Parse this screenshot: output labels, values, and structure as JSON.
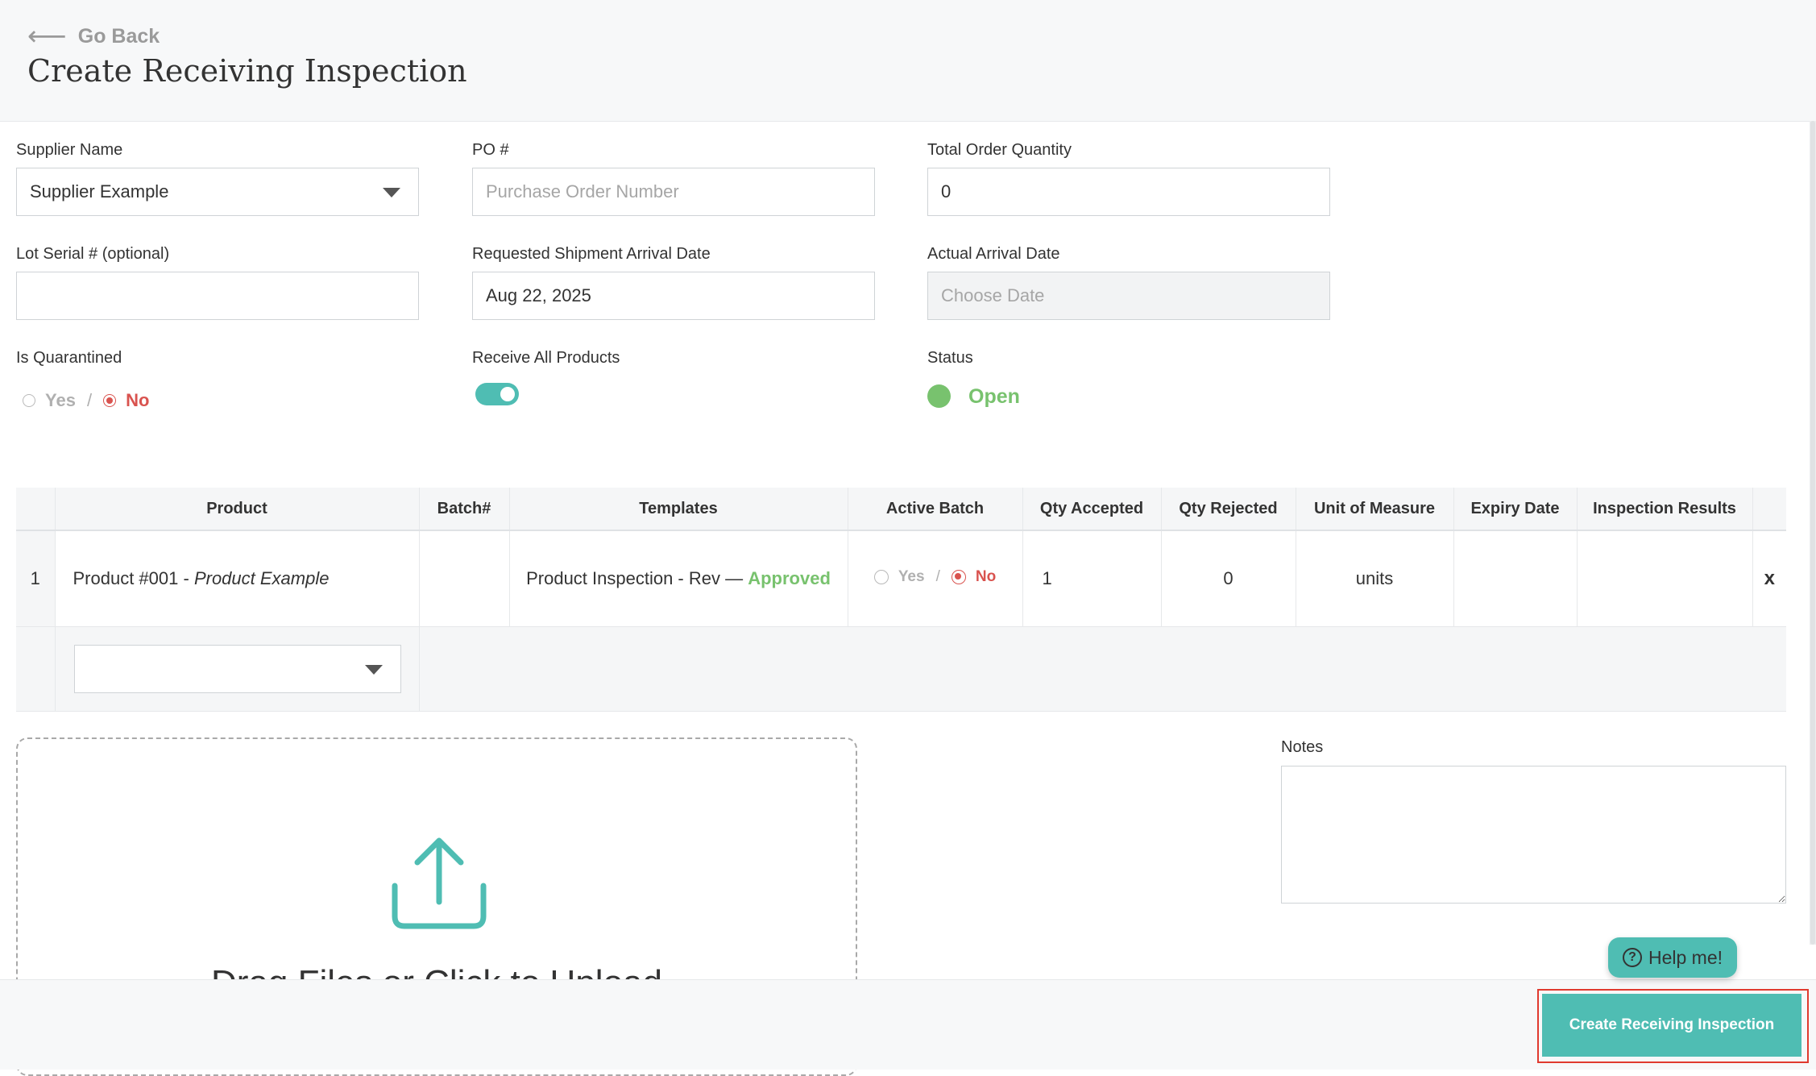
{
  "header": {
    "back_label": "Go Back",
    "title": "Create Receiving Inspection"
  },
  "form": {
    "supplier": {
      "label": "Supplier Name",
      "value": "Supplier Example"
    },
    "po": {
      "label": "PO #",
      "placeholder": "Purchase Order Number",
      "value": ""
    },
    "total_qty": {
      "label": "Total Order Quantity",
      "value": "0"
    },
    "lot_serial": {
      "label": "Lot Serial # (optional)",
      "value": ""
    },
    "requested_date": {
      "label": "Requested Shipment Arrival Date",
      "value": "Aug 22, 2025"
    },
    "actual_date": {
      "label": "Actual Arrival Date",
      "placeholder": "Choose Date"
    },
    "quarantined": {
      "label": "Is Quarantined",
      "yes": "Yes",
      "separator": "/",
      "no": "No",
      "selected": "No"
    },
    "receive_all": {
      "label": "Receive All Products",
      "on": true
    },
    "status": {
      "label": "Status",
      "value": "Open",
      "color": "#78c26e"
    }
  },
  "table": {
    "headers": [
      "Product",
      "Batch#",
      "Templates",
      "Active Batch",
      "Qty Accepted",
      "Qty Rejected",
      "Unit of Measure",
      "Expiry Date",
      "Inspection Results"
    ],
    "rows": [
      {
        "index": "1",
        "product_code": "Product #001 - ",
        "product_name": "Product Example",
        "batch": "",
        "template_prefix": "Product Inspection - Rev — ",
        "template_status": "Approved",
        "active_yes": "Yes",
        "active_sep": "/",
        "active_no": "No",
        "qty_accepted": "1",
        "qty_rejected": "0",
        "unit": "units",
        "expiry": "",
        "results": "",
        "remove": "x"
      }
    ]
  },
  "upload": {
    "text": "Drag Files or Click to Upload"
  },
  "notes": {
    "label": "Notes",
    "value": ""
  },
  "help": {
    "label": "Help me!",
    "glyph": "?"
  },
  "footer": {
    "create_label": "Create Receiving Inspection"
  },
  "colors": {
    "accent": "#4fbdb3",
    "success": "#78c26e",
    "danger": "#d9534f",
    "highlight": "#e03a2f"
  }
}
